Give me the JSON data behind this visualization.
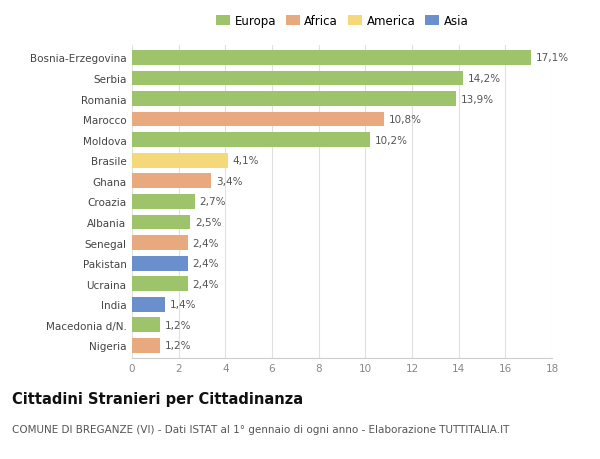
{
  "countries": [
    "Bosnia-Erzegovina",
    "Serbia",
    "Romania",
    "Marocco",
    "Moldova",
    "Brasile",
    "Ghana",
    "Croazia",
    "Albania",
    "Senegal",
    "Pakistan",
    "Ucraina",
    "India",
    "Macedonia d/N.",
    "Nigeria"
  ],
  "values": [
    17.1,
    14.2,
    13.9,
    10.8,
    10.2,
    4.1,
    3.4,
    2.7,
    2.5,
    2.4,
    2.4,
    2.4,
    1.4,
    1.2,
    1.2
  ],
  "labels": [
    "17,1%",
    "14,2%",
    "13,9%",
    "10,8%",
    "10,2%",
    "4,1%",
    "3,4%",
    "2,7%",
    "2,5%",
    "2,4%",
    "2,4%",
    "2,4%",
    "1,4%",
    "1,2%",
    "1,2%"
  ],
  "categories": [
    "Europa",
    "Africa",
    "America",
    "Asia"
  ],
  "bar_colors": [
    "#9dc36b",
    "#9dc36b",
    "#9dc36b",
    "#e8a97e",
    "#9dc36b",
    "#f5d87a",
    "#e8a97e",
    "#9dc36b",
    "#9dc36b",
    "#e8a97e",
    "#6b8fcc",
    "#9dc36b",
    "#6b8fcc",
    "#9dc36b",
    "#e8a97e"
  ],
  "legend_colors": [
    "#9dc36b",
    "#e8a97e",
    "#f5d87a",
    "#6b8fcc"
  ],
  "background_color": "#ffffff",
  "grid_color": "#e0e0e0",
  "title": "Cittadini Stranieri per Cittadinanza",
  "subtitle": "COMUNE DI BREGANZE (VI) - Dati ISTAT al 1° gennaio di ogni anno - Elaborazione TUTTITALIA.IT",
  "xlim": [
    0,
    18
  ],
  "xticks": [
    0,
    2,
    4,
    6,
    8,
    10,
    12,
    14,
    16,
    18
  ],
  "bar_height": 0.72,
  "label_fontsize": 7.5,
  "tick_fontsize": 7.5,
  "country_fontsize": 7.5,
  "legend_fontsize": 8.5,
  "title_fontsize": 10.5,
  "subtitle_fontsize": 7.5
}
